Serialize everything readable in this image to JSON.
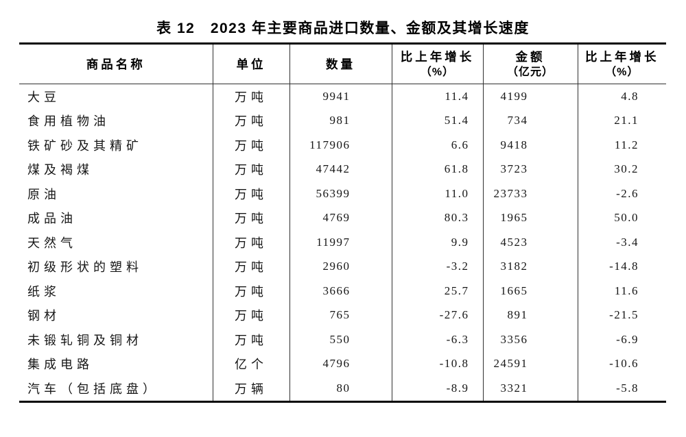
{
  "title": "表 12　2023 年主要商品进口数量、金额及其增长速度",
  "table": {
    "columns": [
      {
        "label": "商品名称",
        "sub": ""
      },
      {
        "label": "单位",
        "sub": ""
      },
      {
        "label": "数量",
        "sub": ""
      },
      {
        "label": "比上年增长",
        "sub": "（%）"
      },
      {
        "label": "金额",
        "sub": "（亿元）"
      },
      {
        "label": "比上年增长",
        "sub": "（%）"
      }
    ],
    "rows": [
      [
        "大豆",
        "万吨",
        "9941",
        "11.4",
        "4199",
        "4.8"
      ],
      [
        "食用植物油",
        "万吨",
        "981",
        "51.4",
        "734",
        "21.1"
      ],
      [
        "铁矿砂及其精矿",
        "万吨",
        "117906",
        "6.6",
        "9418",
        "11.2"
      ],
      [
        "煤及褐煤",
        "万吨",
        "47442",
        "61.8",
        "3723",
        "30.2"
      ],
      [
        "原油",
        "万吨",
        "56399",
        "11.0",
        "23733",
        "-2.6"
      ],
      [
        "成品油",
        "万吨",
        "4769",
        "80.3",
        "1965",
        "50.0"
      ],
      [
        "天然气",
        "万吨",
        "11997",
        "9.9",
        "4523",
        "-3.4"
      ],
      [
        "初级形状的塑料",
        "万吨",
        "2960",
        "-3.2",
        "3182",
        "-14.8"
      ],
      [
        "纸浆",
        "万吨",
        "3666",
        "25.7",
        "1665",
        "11.6"
      ],
      [
        "钢材",
        "万吨",
        "765",
        "-27.6",
        "891",
        "-21.5"
      ],
      [
        "未锻轧铜及铜材",
        "万吨",
        "550",
        "-6.3",
        "3356",
        "-6.9"
      ],
      [
        "集成电路",
        "亿个",
        "4796",
        "-10.8",
        "24591",
        "-10.6"
      ],
      [
        "汽车（包括底盘）",
        "万辆",
        "80",
        "-8.9",
        "3321",
        "-5.8"
      ]
    ]
  }
}
